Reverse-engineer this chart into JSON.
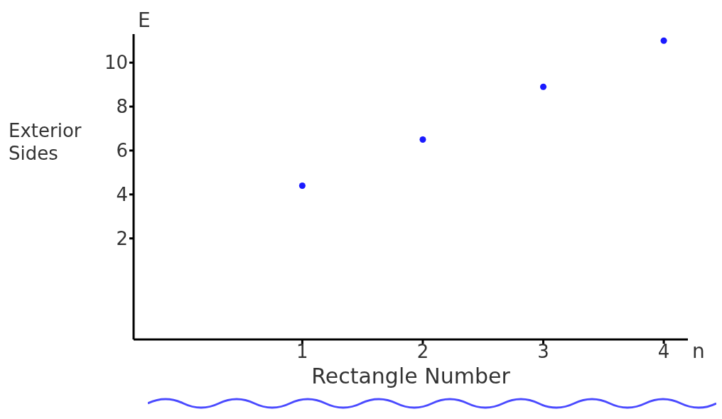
{
  "chart_data": {
    "type": "scatter",
    "xlabel": "Rectangle Number",
    "ylabel": "Exterior Sides",
    "x": [
      1,
      2,
      3,
      4
    ],
    "series": [
      {
        "color": "#1a1aff",
        "values": [
          4.4,
          6.5,
          8.9,
          11
        ]
      }
    ],
    "xlim": [
      -0.4,
      4.2
    ],
    "ylim": [
      -2.6,
      11.3
    ],
    "xticks": [
      1,
      2,
      3,
      4
    ],
    "yticks": [
      2,
      4,
      6,
      8,
      10
    ],
    "annotations": [
      "E",
      "n"
    ],
    "marker": "circle",
    "grid": false,
    "legend": false
  }
}
